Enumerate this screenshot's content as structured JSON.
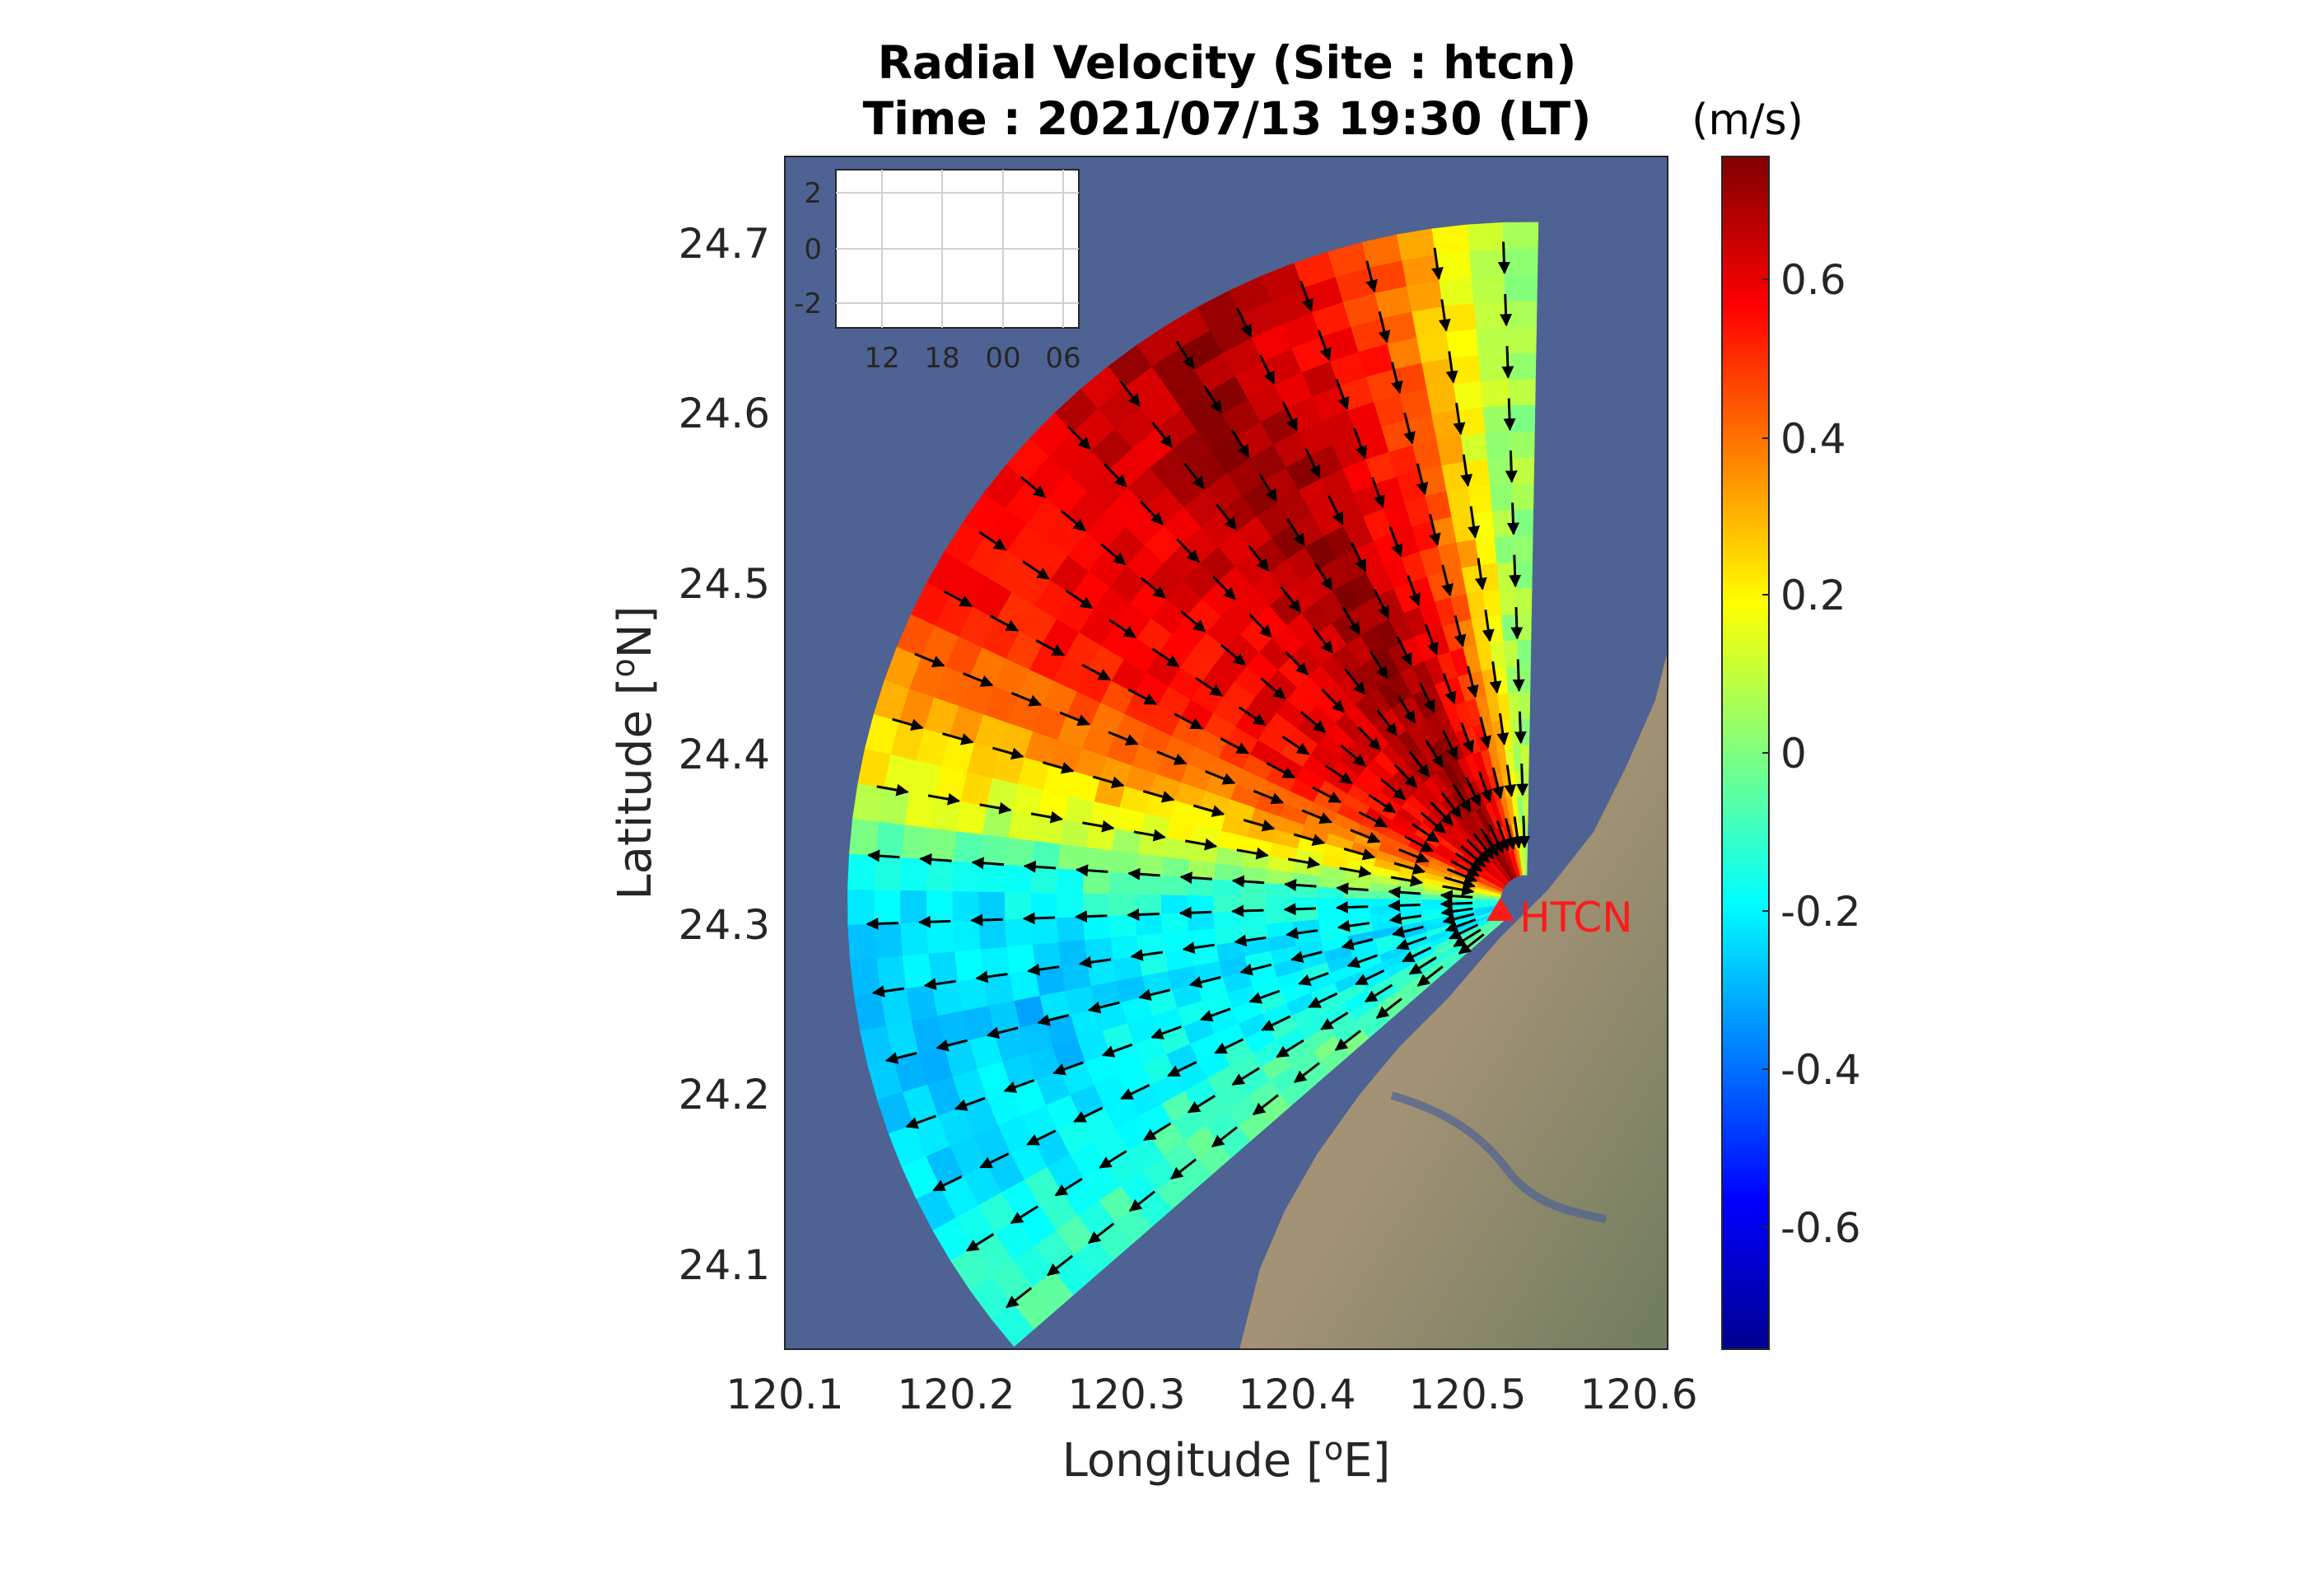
{
  "title_line1": "Radial Velocity (Site : htcn)",
  "title_line2": "Time : 2021/07/13 19:30 (LT)",
  "colorbar_unit": "(m/s)",
  "site_label": "HTCN",
  "chart_data": {
    "type": "heatmap",
    "subtype": "radar-sector-radial-velocity-with-vectors",
    "xlabel": "Longitude [oE]",
    "ylabel": "Latitude [oN]",
    "xlim": [
      120.1,
      120.6
    ],
    "ylim": [
      24.05,
      24.75
    ],
    "x_ticks": [
      "120.1",
      "120.2",
      "120.3",
      "120.4",
      "120.5",
      "120.6"
    ],
    "y_ticks": [
      "24.1",
      "24.2",
      "24.3",
      "24.4",
      "24.5",
      "24.6",
      "24.7"
    ],
    "site": {
      "name": "HTCN",
      "lon": 120.52,
      "lat": 24.313
    },
    "sector": {
      "bearing_from_deg": 229,
      "bearing_to_deg": 360,
      "max_range_km": 38
    },
    "colorbar": {
      "min": -0.75,
      "max": 0.75,
      "ticks": [
        "0.6",
        "0.4",
        "0.2",
        "0",
        "-0.2",
        "-0.4",
        "-0.6"
      ],
      "colormap": "jet"
    },
    "radial_velocity_by_bearing": [
      {
        "bearing_deg": 232,
        "mean_velocity": -0.05
      },
      {
        "bearing_deg": 245,
        "mean_velocity": -0.18
      },
      {
        "bearing_deg": 258,
        "mean_velocity": -0.22
      },
      {
        "bearing_deg": 270,
        "mean_velocity": -0.15
      },
      {
        "bearing_deg": 280,
        "mean_velocity": 0.15
      },
      {
        "bearing_deg": 290,
        "mean_velocity": 0.38
      },
      {
        "bearing_deg": 300,
        "mean_velocity": 0.55
      },
      {
        "bearing_deg": 315,
        "mean_velocity": 0.6
      },
      {
        "bearing_deg": 330,
        "mean_velocity": 0.72
      },
      {
        "bearing_deg": 345,
        "mean_velocity": 0.5
      },
      {
        "bearing_deg": 357,
        "mean_velocity": 0.05
      }
    ],
    "inset": {
      "y_ticks": [
        "2",
        "0",
        "-2"
      ],
      "x_ticks": [
        "12",
        "18",
        "00",
        "06"
      ],
      "ylim": [
        -3,
        3
      ]
    }
  }
}
